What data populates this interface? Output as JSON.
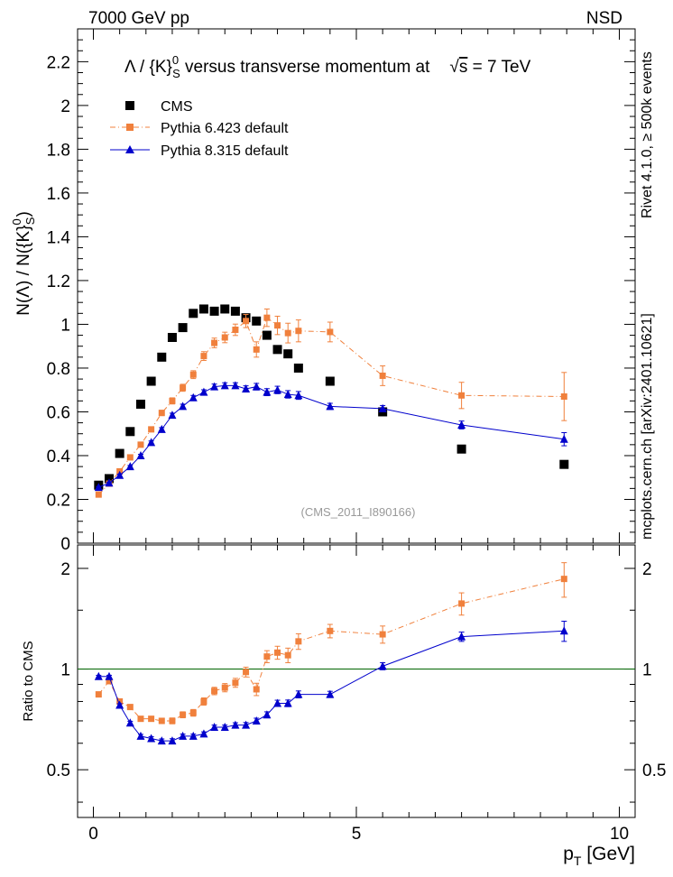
{
  "chart_data": {
    "type": "scatter",
    "header": {
      "left": "7000 GeV pp",
      "right": "NSD"
    },
    "title": "Λ / {K}⁰S versus transverse momentum at √s = 7 TeV",
    "title_parts": {
      "a": "Λ / {K}",
      "sup": "0",
      "sub": "S",
      "b": " versus transverse momentum at",
      "sqrt": "√",
      "s": "s",
      "c": " = 7 TeV"
    },
    "ylabel": "N(Λ) / N({K}⁰S)",
    "ylabel_parts": {
      "a": "N(Λ)  /  N({K}",
      "sup": "0",
      "sub": "S",
      "b": ")"
    },
    "ratio_ylabel": "Ratio to CMS",
    "xlabel": "p_T [GeV]",
    "xlabel_parts": {
      "p": "p",
      "sub": "T",
      "rest": " [GeV]"
    },
    "watermark": "(CMS_2011_I890166)",
    "side_labels": {
      "right_top": "Rivet 4.1.0, ≥ 500k events",
      "right_bottom": "mcplots.cern.ch [arXiv:2401.10621]"
    },
    "xlim": [
      -0.3,
      10.3
    ],
    "ylim": [
      0,
      2.35
    ],
    "ratio_ylim": [
      0.36,
      2.35
    ],
    "ratio_log": true,
    "x_ticks": [
      0,
      5,
      10
    ],
    "x_tick_labels": [
      "0",
      "5",
      "10"
    ],
    "y_ticks": [
      0,
      0.2,
      0.4,
      0.6,
      0.8,
      1,
      1.2,
      1.4,
      1.6,
      1.8,
      2,
      2.2
    ],
    "y_tick_labels": [
      "0",
      "0.2",
      "0.4",
      "0.6",
      "0.8",
      "1",
      "1.2",
      "1.4",
      "1.6",
      "1.8",
      "2",
      "2.2"
    ],
    "ratio_ticks": [
      0.5,
      1,
      2
    ],
    "ratio_tick_labels": [
      "0.5",
      "1",
      "2"
    ],
    "series": [
      {
        "name": "CMS",
        "color": "#000000",
        "marker": "square",
        "line": "none",
        "x": [
          0.1,
          0.3,
          0.5,
          0.7,
          0.9,
          1.1,
          1.3,
          1.5,
          1.7,
          1.9,
          2.1,
          2.3,
          2.5,
          2.7,
          2.9,
          3.1,
          3.3,
          3.5,
          3.7,
          3.9,
          4.5,
          5.5,
          7.0,
          8.95
        ],
        "values": [
          0.265,
          0.295,
          0.41,
          0.51,
          0.635,
          0.74,
          0.85,
          0.94,
          0.985,
          1.05,
          1.07,
          1.06,
          1.07,
          1.06,
          1.03,
          1.015,
          0.95,
          0.885,
          0.865,
          0.8,
          0.74,
          0.6,
          0.43,
          0.36
        ]
      },
      {
        "name": "Pythia 6.423 default",
        "color": "#f0803c",
        "marker": "square",
        "line": "dash-dot",
        "x": [
          0.1,
          0.3,
          0.5,
          0.7,
          0.9,
          1.1,
          1.3,
          1.5,
          1.7,
          1.9,
          2.1,
          2.3,
          2.5,
          2.7,
          2.9,
          3.1,
          3.3,
          3.5,
          3.7,
          3.9,
          4.5,
          5.5,
          7.0,
          8.95
        ],
        "values": [
          0.222,
          0.272,
          0.328,
          0.392,
          0.45,
          0.52,
          0.595,
          0.65,
          0.71,
          0.77,
          0.855,
          0.915,
          0.94,
          0.975,
          1.015,
          0.885,
          1.03,
          0.995,
          0.96,
          0.97,
          0.965,
          0.765,
          0.675,
          0.67
        ],
        "errors": [
          0.005,
          0.005,
          0.006,
          0.007,
          0.008,
          0.01,
          0.012,
          0.014,
          0.016,
          0.018,
          0.02,
          0.022,
          0.024,
          0.026,
          0.03,
          0.035,
          0.04,
          0.042,
          0.045,
          0.05,
          0.045,
          0.045,
          0.06,
          0.11
        ],
        "ratio": [
          0.84,
          0.92,
          0.8,
          0.77,
          0.71,
          0.71,
          0.7,
          0.7,
          0.73,
          0.74,
          0.8,
          0.86,
          0.88,
          0.91,
          0.98,
          0.87,
          1.09,
          1.12,
          1.1,
          1.21,
          1.3,
          1.27,
          1.57,
          1.86
        ],
        "ratio_errors": [
          0.01,
          0.01,
          0.01,
          0.01,
          0.01,
          0.012,
          0.013,
          0.014,
          0.015,
          0.017,
          0.02,
          0.022,
          0.025,
          0.028,
          0.033,
          0.037,
          0.045,
          0.05,
          0.055,
          0.065,
          0.06,
          0.075,
          0.12,
          0.22
        ]
      },
      {
        "name": "Pythia 8.315 default",
        "color": "#0000cc",
        "marker": "triangle",
        "line": "solid",
        "x": [
          0.1,
          0.3,
          0.5,
          0.7,
          0.9,
          1.1,
          1.3,
          1.5,
          1.7,
          1.9,
          2.1,
          2.3,
          2.5,
          2.7,
          2.9,
          3.1,
          3.3,
          3.5,
          3.7,
          3.9,
          4.5,
          5.5,
          7.0,
          8.95
        ],
        "values": [
          0.255,
          0.275,
          0.31,
          0.35,
          0.4,
          0.46,
          0.52,
          0.585,
          0.625,
          0.665,
          0.69,
          0.715,
          0.72,
          0.72,
          0.705,
          0.715,
          0.69,
          0.7,
          0.68,
          0.675,
          0.625,
          0.615,
          0.54,
          0.475
        ],
        "errors": [
          0.004,
          0.004,
          0.005,
          0.005,
          0.006,
          0.007,
          0.008,
          0.009,
          0.01,
          0.01,
          0.011,
          0.012,
          0.013,
          0.013,
          0.014,
          0.015,
          0.016,
          0.017,
          0.017,
          0.018,
          0.014,
          0.014,
          0.018,
          0.03
        ],
        "ratio": [
          0.95,
          0.95,
          0.78,
          0.69,
          0.63,
          0.62,
          0.61,
          0.61,
          0.63,
          0.63,
          0.64,
          0.67,
          0.67,
          0.68,
          0.68,
          0.7,
          0.73,
          0.79,
          0.79,
          0.84,
          0.84,
          1.02,
          1.25,
          1.3
        ],
        "ratio_errors": [
          0.008,
          0.008,
          0.008,
          0.008,
          0.008,
          0.008,
          0.008,
          0.009,
          0.009,
          0.009,
          0.009,
          0.01,
          0.01,
          0.011,
          0.012,
          0.013,
          0.015,
          0.017,
          0.018,
          0.02,
          0.018,
          0.025,
          0.04,
          0.09
        ]
      }
    ]
  }
}
